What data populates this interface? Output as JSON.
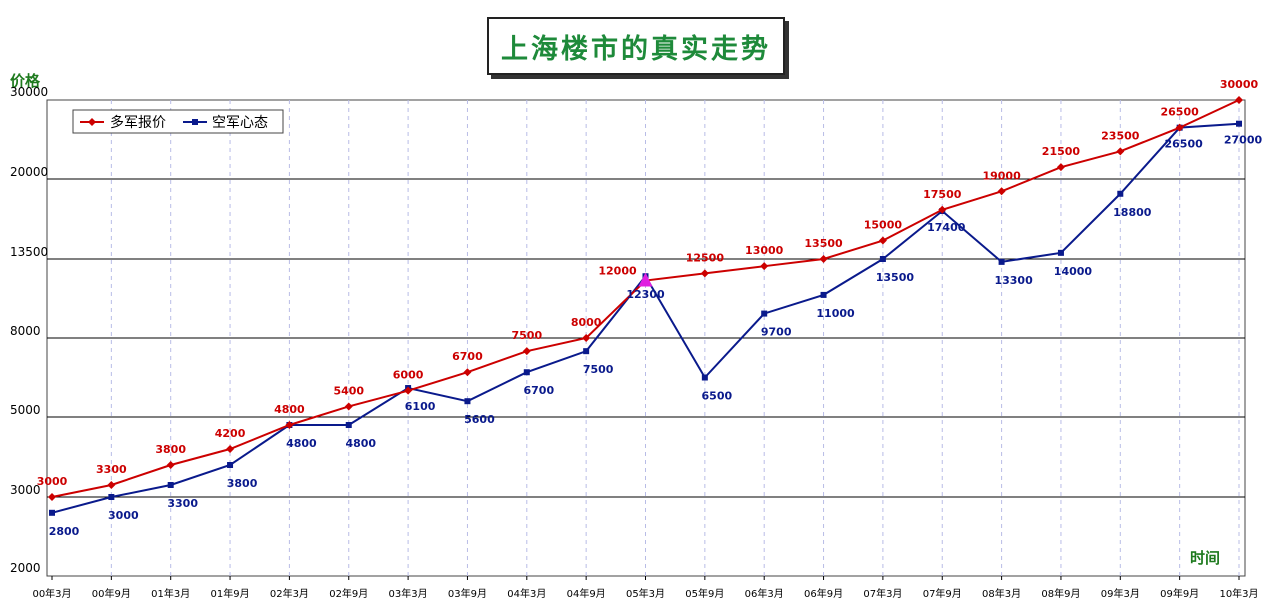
{
  "chart_data": {
    "type": "line",
    "title": "上海楼市的真实走势",
    "ylabel": "价格",
    "xlabel": "时间",
    "categories": [
      "00年3月",
      "00年9月",
      "01年3月",
      "01年9月",
      "02年3月",
      "02年9月",
      "03年3月",
      "03年9月",
      "04年3月",
      "04年9月",
      "05年3月",
      "05年9月",
      "06年3月",
      "06年9月",
      "07年3月",
      "07年9月",
      "08年3月",
      "08年9月",
      "09年3月",
      "09年9月",
      "10年3月"
    ],
    "y_ticks": [
      "30000",
      "20000",
      "13500",
      "8000",
      "5000",
      "3000",
      "2000"
    ],
    "grid": true,
    "legend_position": "top-left",
    "series": [
      {
        "name": "多军报价",
        "color": "#cc0000",
        "values": [
          3000,
          3300,
          3800,
          4200,
          4800,
          5400,
          6000,
          6700,
          7500,
          8000,
          12000,
          12500,
          13000,
          13500,
          15000,
          17500,
          19000,
          21500,
          23500,
          26500,
          30000
        ]
      },
      {
        "name": "空军心态",
        "color": "#0a1a8c",
        "values": [
          2800,
          3000,
          3300,
          3800,
          4800,
          4800,
          6100,
          5600,
          6700,
          7500,
          12300,
          6500,
          9700,
          11000,
          13500,
          17400,
          13300,
          14000,
          18800,
          26500,
          27000
        ]
      }
    ],
    "highlight_color": "#e020e0"
  }
}
